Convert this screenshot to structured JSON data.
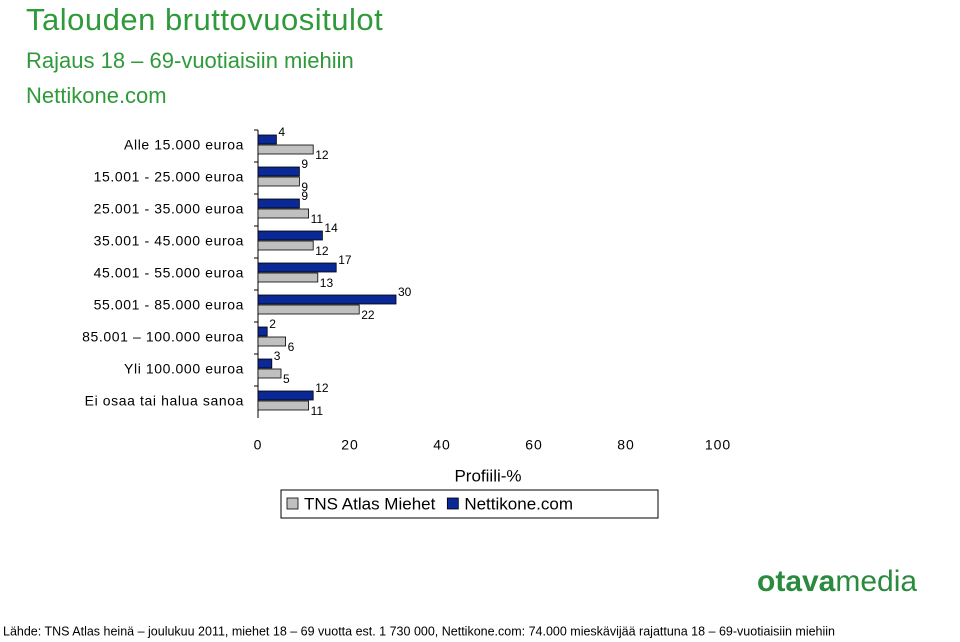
{
  "chart_data": {
    "type": "hbar",
    "title": "Talouden bruttovuositulot",
    "subtitle": "Rajaus 18 – 69-vuotiaisiin miehiin",
    "subtitle2": "Nettikone.com",
    "categories": [
      "Alle 15.000 euroa",
      "15.001 - 25.000 euroa",
      "25.001 - 35.000 euroa",
      "35.001 - 45.000 euroa",
      "45.001 - 55.000 euroa",
      "55.001 - 85.000 euroa",
      "85.001 – 100.000 euroa",
      "Yli 100.000 euroa",
      "Ei osaa tai halua sanoa"
    ],
    "series": [
      {
        "name": "TNS Atlas Miehet",
        "color": "#c0c0c0",
        "values": [
          12,
          9,
          11,
          12,
          13,
          22,
          6,
          5,
          11
        ]
      },
      {
        "name": "Nettikone.com",
        "color": "#0a2896",
        "values": [
          4,
          9,
          9,
          14,
          17,
          30,
          2,
          3,
          12
        ]
      }
    ],
    "xlim": [
      0,
      100
    ],
    "xticks": [
      0,
      20,
      40,
      60,
      80,
      100
    ],
    "xlabel": "Profiili-%",
    "logo": [
      "otava",
      "media"
    ],
    "source": "Lähde: TNS Atlas heinä – joulukuu 2011, miehet 18 – 69 vuotta est. 1 730 000, Nettikone.com: 74.000 mieskävijää rajattuna 18 – 69-vuotiaisiin miehiin"
  }
}
